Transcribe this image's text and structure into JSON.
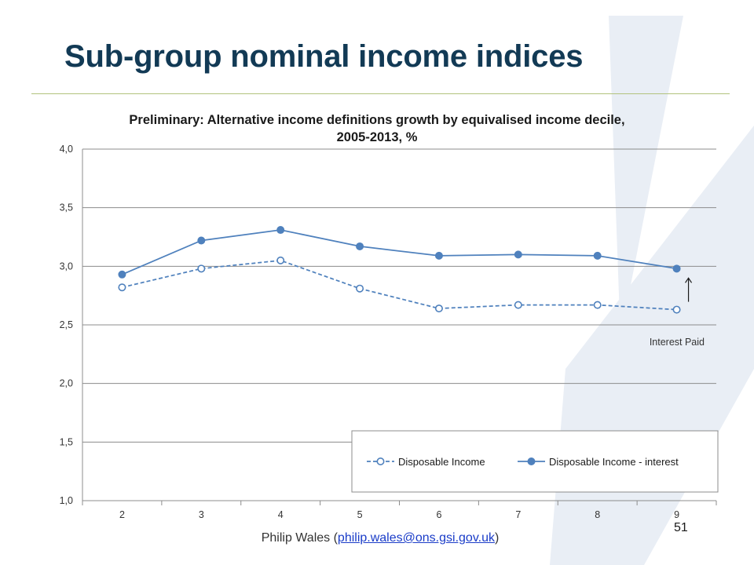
{
  "slide": {
    "title": "Sub-group nominal income indices",
    "page_number": "51",
    "footer": {
      "prefix": "Philip Wales (",
      "email": "philip.wales@ons.gsi.gov.uk",
      "suffix": ")"
    }
  },
  "colors": {
    "title": "#123a55",
    "title_rule": "#b2c27d",
    "series_line": "#4f81bd",
    "link": "#1a3cc8",
    "watermark": "#e9eef5"
  },
  "icons": {
    "background": "ons-x-watermark",
    "annotation": "arrow-up-icon"
  },
  "chart_data": {
    "type": "line",
    "title_lines": [
      "Preliminary: Alternative income definitions growth by equivalised income decile,",
      "2005-2013, %"
    ],
    "xlabel": "",
    "ylabel": "",
    "x": [
      2,
      3,
      4,
      5,
      6,
      7,
      8,
      9
    ],
    "ylim": [
      1.0,
      4.0
    ],
    "y_ticks": [
      "1,0",
      "1,5",
      "2,0",
      "2,5",
      "3,0",
      "3,5",
      "4,0"
    ],
    "grid": "horizontal",
    "legend_position": "bottom-right",
    "series": [
      {
        "name": "Disposable Income",
        "style": "dashed-open-markers",
        "values": [
          2.82,
          2.98,
          3.05,
          2.81,
          2.64,
          2.67,
          2.67,
          2.63
        ]
      },
      {
        "name": "Disposable Income - interest",
        "style": "solid-filled-markers",
        "values": [
          2.93,
          3.22,
          3.31,
          3.17,
          3.09,
          3.1,
          3.09,
          2.98
        ]
      }
    ],
    "annotation": {
      "text": "Interest Paid",
      "x": 9
    }
  }
}
